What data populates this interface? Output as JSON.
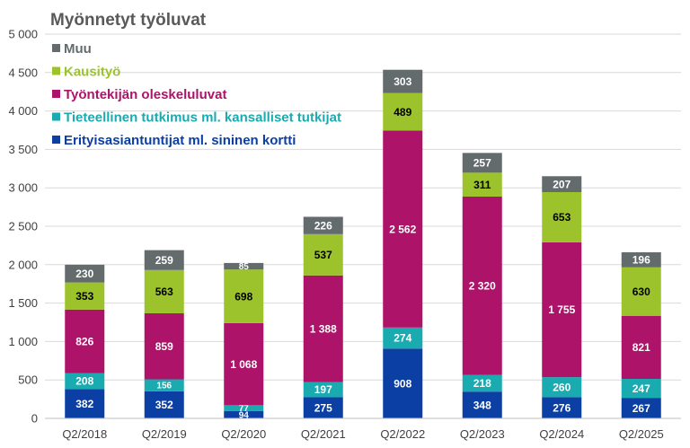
{
  "chart_data": {
    "type": "bar",
    "stacked": true,
    "title": "Myönnetyt työluvat",
    "categories": [
      "Q2/2018",
      "Q2/2019",
      "Q2/2020",
      "Q2/2021",
      "Q2/2022",
      "Q2/2023",
      "Q2/2024",
      "Q2/2025"
    ],
    "series": [
      {
        "name": "Erityisasiantuntijat ml. sininen kortti",
        "color": "#0b3fa3",
        "label_color": "#ffffff",
        "values": [
          382,
          352,
          94,
          275,
          908,
          348,
          276,
          267
        ]
      },
      {
        "name": "Tieteellinen tutkimus ml. kansalliset tutkijat",
        "color": "#1aabb0",
        "label_color": "#ffffff",
        "values": [
          208,
          156,
          77,
          197,
          274,
          218,
          260,
          247
        ]
      },
      {
        "name": "Työntekijän oleskeluluvat",
        "color": "#ad1368",
        "label_color": "#ffffff",
        "values": [
          826,
          859,
          1068,
          1388,
          2562,
          2320,
          1755,
          821
        ]
      },
      {
        "name": "Kausityö",
        "color": "#9dc32c",
        "label_color": "#000000",
        "values": [
          353,
          563,
          698,
          537,
          489,
          311,
          653,
          630
        ]
      },
      {
        "name": "Muu",
        "color": "#636b6c",
        "label_color": "#ffffff",
        "values": [
          230,
          259,
          85,
          226,
          303,
          257,
          207,
          196
        ]
      }
    ],
    "value_labels": [
      [
        "382",
        "352",
        "94",
        "275",
        "908",
        "348",
        "276",
        "267"
      ],
      [
        "208",
        "156",
        "77",
        "197",
        "274",
        "218",
        "260",
        "247"
      ],
      [
        "826",
        "859",
        "1 068",
        "1 388",
        "2 562",
        "2 320",
        "1 755",
        "821"
      ],
      [
        "353",
        "563",
        "698",
        "537",
        "489",
        "311",
        "653",
        "630"
      ],
      [
        "230",
        "259",
        "85",
        "226",
        "303",
        "257",
        "207",
        "196"
      ]
    ],
    "y_ticks": [
      {
        "value": 0,
        "label": "0"
      },
      {
        "value": 500,
        "label": "500"
      },
      {
        "value": 1000,
        "label": "1 000"
      },
      {
        "value": 1500,
        "label": "1 500"
      },
      {
        "value": 2000,
        "label": "2 000"
      },
      {
        "value": 2500,
        "label": "2 500"
      },
      {
        "value": 3000,
        "label": "3 000"
      },
      {
        "value": 3500,
        "label": "3 500"
      },
      {
        "value": 4000,
        "label": "4 000"
      },
      {
        "value": 4500,
        "label": "4 500"
      },
      {
        "value": 5000,
        "label": "5 000"
      }
    ],
    "ylim": [
      0,
      5000
    ],
    "grid": true,
    "legend_placement": "top-left",
    "legend_order": [
      "Muu",
      "Kausityö",
      "Työntekijän oleskeluluvat",
      "Tieteellinen tutkimus ml. kansalliset tutkijat",
      "Erityisasiantuntijat ml. sininen kortti"
    ]
  }
}
